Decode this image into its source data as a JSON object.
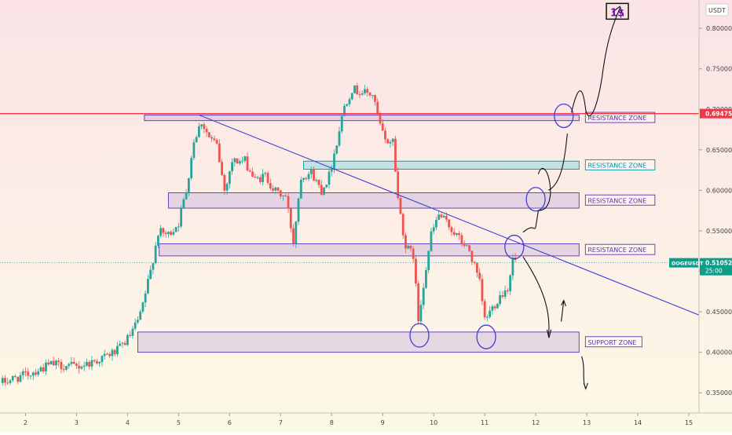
{
  "chart_data": {
    "type": "candlestick",
    "symbol": "DOGEUSDT",
    "currency": "USDT",
    "last_price": "0.51052",
    "countdown": "25:00",
    "hline_price": "0.69475",
    "ylim": [
      0.325,
      0.835
    ],
    "xlim": [
      1.5,
      15.2
    ],
    "y_ticks": [
      "0.80000",
      "0.75000",
      "0.70000",
      "0.65000",
      "0.60000",
      "0.55000",
      "0.50000",
      "0.45000",
      "0.40000",
      "0.35000"
    ],
    "y_tick_values": [
      0.8,
      0.75,
      0.7,
      0.65,
      0.6,
      0.55,
      0.5,
      0.45,
      0.4,
      0.35
    ],
    "x_ticks": [
      "2",
      "3",
      "4",
      "5",
      "6",
      "7",
      "8",
      "9",
      "10",
      "11",
      "12",
      "13",
      "14",
      "15"
    ],
    "x_tick_values": [
      2,
      3,
      4,
      5,
      6,
      7,
      8,
      9,
      10,
      11,
      12,
      13,
      14,
      15
    ],
    "price_path": [
      [
        1.5,
        0.362
      ],
      [
        2.0,
        0.372
      ],
      [
        2.5,
        0.385
      ],
      [
        3.0,
        0.382
      ],
      [
        3.4,
        0.39
      ],
      [
        3.8,
        0.402
      ],
      [
        4.05,
        0.42
      ],
      [
        4.25,
        0.445
      ],
      [
        4.45,
        0.5
      ],
      [
        4.6,
        0.548
      ],
      [
        4.8,
        0.545
      ],
      [
        5.0,
        0.56
      ],
      [
        5.15,
        0.6
      ],
      [
        5.3,
        0.662
      ],
      [
        5.45,
        0.685
      ],
      [
        5.6,
        0.665
      ],
      [
        5.75,
        0.655
      ],
      [
        5.9,
        0.6
      ],
      [
        6.05,
        0.636
      ],
      [
        6.3,
        0.636
      ],
      [
        6.5,
        0.612
      ],
      [
        6.7,
        0.618
      ],
      [
        6.9,
        0.598
      ],
      [
        7.1,
        0.592
      ],
      [
        7.25,
        0.537
      ],
      [
        7.4,
        0.618
      ],
      [
        7.6,
        0.622
      ],
      [
        7.8,
        0.6
      ],
      [
        7.95,
        0.618
      ],
      [
        8.1,
        0.66
      ],
      [
        8.25,
        0.705
      ],
      [
        8.4,
        0.725
      ],
      [
        8.55,
        0.722
      ],
      [
        8.8,
        0.718
      ],
      [
        8.95,
        0.68
      ],
      [
        9.05,
        0.66
      ],
      [
        9.2,
        0.662
      ],
      [
        9.3,
        0.59
      ],
      [
        9.45,
        0.53
      ],
      [
        9.6,
        0.52
      ],
      [
        9.7,
        0.44
      ],
      [
        9.8,
        0.485
      ],
      [
        9.95,
        0.545
      ],
      [
        10.1,
        0.57
      ],
      [
        10.3,
        0.556
      ],
      [
        10.5,
        0.54
      ],
      [
        10.7,
        0.525
      ],
      [
        10.9,
        0.485
      ],
      [
        11.0,
        0.44
      ],
      [
        11.15,
        0.455
      ],
      [
        11.3,
        0.47
      ],
      [
        11.45,
        0.48
      ],
      [
        11.55,
        0.515
      ],
      [
        11.65,
        0.51
      ]
    ],
    "trendline": [
      [
        5.4,
        0.693
      ],
      [
        15.2,
        0.446
      ]
    ],
    "zones": [
      {
        "label": "RESISTANCE ZONE",
        "x0": 4.33,
        "x1": 12.85,
        "y_low": 0.686,
        "y_high": 0.693,
        "color": "#b39ddb",
        "label_color": "#5e35b1"
      },
      {
        "label": "RESISTANCE ZONE",
        "x0": 7.45,
        "x1": 12.85,
        "y_low": 0.626,
        "y_high": 0.636,
        "color": "#4dd0e1",
        "label_color": "#0097a7"
      },
      {
        "label": "RESISTANCE ZONE",
        "x0": 4.8,
        "x1": 12.85,
        "y_low": 0.578,
        "y_high": 0.597,
        "color": "#b39ddb",
        "label_color": "#5e35b1"
      },
      {
        "label": "RESISTANCE ZONE",
        "x0": 4.62,
        "x1": 12.85,
        "y_low": 0.519,
        "y_high": 0.534,
        "color": "#b39ddb",
        "label_color": "#5e35b1"
      },
      {
        "label": "SUPPORT ZONE",
        "x0": 4.2,
        "x1": 12.85,
        "y_low": 0.4,
        "y_high": 0.425,
        "color": "#b39ddb",
        "label_color": "#5e35b1"
      }
    ],
    "circles": [
      [
        11.58,
        0.53
      ],
      [
        12.0,
        0.589
      ],
      [
        12.55,
        0.692
      ],
      [
        9.72,
        0.421
      ],
      [
        11.03,
        0.419
      ]
    ],
    "target_label": "1$",
    "colors": {
      "up": "#26a69a",
      "down": "#ef5350",
      "hline": "#f23645",
      "trend": "#3f3fd6",
      "annotation": "#111111"
    }
  }
}
